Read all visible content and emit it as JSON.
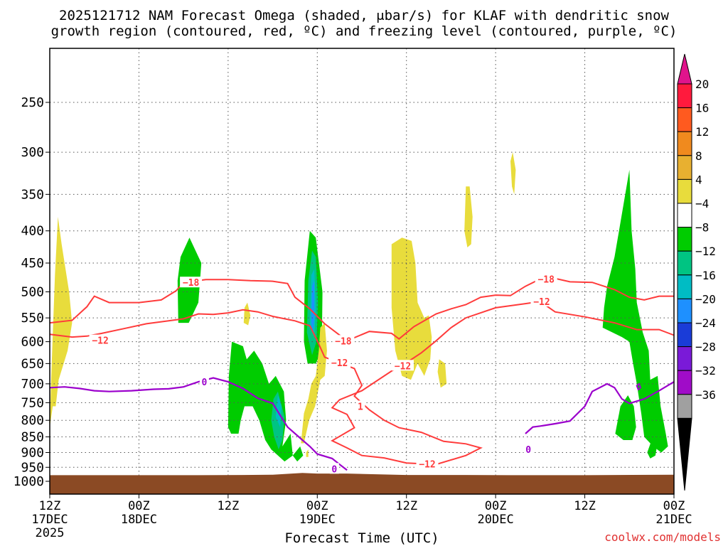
{
  "chart_data": {
    "type": "heatmap",
    "title_line1": "2025121712 NAM Forecast Omega (shaded, μbar/s) for KLAF with dendritic snow",
    "title_line2": "growth region (contoured, red, ºC) and freezing level (contoured, purple, ºC)",
    "xlabel": "Forecast Time (UTC)",
    "ylabel": "Pressure (mb)",
    "credit": "coolwx.com/models",
    "xlim_hours": [
      0,
      84
    ],
    "ylim_mb": [
      1000,
      200
    ],
    "x_ticks": [
      {
        "h": 0,
        "top": "12Z",
        "bottom": "17DEC",
        "extra": "2025"
      },
      {
        "h": 12,
        "top": "00Z",
        "bottom": "18DEC"
      },
      {
        "h": 24,
        "top": "12Z",
        "bottom": ""
      },
      {
        "h": 36,
        "top": "00Z",
        "bottom": "19DEC"
      },
      {
        "h": 48,
        "top": "12Z",
        "bottom": ""
      },
      {
        "h": 60,
        "top": "00Z",
        "bottom": "20DEC"
      },
      {
        "h": 72,
        "top": "12Z",
        "bottom": ""
      },
      {
        "h": 84,
        "top": "00Z",
        "bottom": "21DEC"
      }
    ],
    "y_ticks": [
      250,
      300,
      350,
      400,
      450,
      500,
      550,
      600,
      650,
      700,
      750,
      800,
      850,
      900,
      950,
      1000
    ],
    "colorbar": {
      "labels": [
        "20",
        "16",
        "12",
        "8",
        "4",
        "−4",
        "−8",
        "−12",
        "−16",
        "−20",
        "−24",
        "−28",
        "−32",
        "−36"
      ],
      "colors": [
        "#ff1a3d",
        "#ff5a1f",
        "#f08a1e",
        "#e8b030",
        "#e8dc3c",
        "#ffffff",
        "#00cc00",
        "#00c482",
        "#00bcc4",
        "#1e90ff",
        "#1a3cd8",
        "#7a1ad8",
        "#a00cc8",
        "#a0a0a0"
      ],
      "top_arrow_color": "#e0148c",
      "bottom_arrow_color": "#000000"
    },
    "omega_fill_colors": {
      "pos4_8": "#e8dc3c",
      "neg4_8": "#00cc00",
      "neg8_12": "#00c482",
      "neg12_16": "#00bcc4",
      "neg16_20": "#1e90ff",
      "neg20_24": "#1a3cd8"
    },
    "contour_colors": {
      "dgz": "#ff3b3b",
      "freezing": "#9b00cc",
      "terrain": "#8b4a24"
    },
    "contour_labels": {
      "minus18": "−18",
      "minus12": "−12",
      "zero": "0"
    },
    "dgz_minus18": [
      [
        0,
        560
      ],
      [
        3,
        555
      ],
      [
        5,
        528
      ],
      [
        6,
        508
      ],
      [
        8,
        520
      ],
      [
        12,
        520
      ],
      [
        15,
        515
      ],
      [
        17,
        498
      ],
      [
        18,
        483
      ],
      [
        21,
        478
      ],
      [
        24,
        478
      ],
      [
        27,
        480
      ],
      [
        30,
        481
      ],
      [
        32,
        485
      ],
      [
        33,
        510
      ],
      [
        35,
        532
      ],
      [
        37,
        562
      ],
      [
        40,
        598
      ],
      [
        43,
        578
      ],
      [
        46,
        582
      ],
      [
        47,
        594
      ],
      [
        49,
        568
      ],
      [
        52,
        542
      ],
      [
        54,
        532
      ],
      [
        56,
        524
      ],
      [
        58,
        510
      ],
      [
        60,
        506
      ],
      [
        62,
        507
      ],
      [
        64,
        490
      ],
      [
        66,
        477
      ],
      [
        68,
        476
      ],
      [
        70,
        482
      ],
      [
        73,
        483
      ],
      [
        76,
        496
      ],
      [
        78,
        510
      ],
      [
        80,
        515
      ],
      [
        82,
        508
      ],
      [
        84,
        508
      ]
    ],
    "dgz_minus12": [
      [
        0,
        584
      ],
      [
        3,
        590
      ],
      [
        5,
        588
      ],
      [
        7,
        582
      ],
      [
        10,
        572
      ],
      [
        13,
        562
      ],
      [
        16,
        556
      ],
      [
        18,
        552
      ],
      [
        20,
        542
      ],
      [
        22,
        543
      ],
      [
        24,
        540
      ],
      [
        26,
        534
      ],
      [
        28,
        538
      ],
      [
        30,
        547
      ],
      [
        33,
        556
      ],
      [
        35,
        566
      ],
      [
        36,
        598
      ],
      [
        37,
        635
      ],
      [
        39,
        648
      ],
      [
        41,
        662
      ],
      [
        42,
        704
      ],
      [
        41,
        732
      ],
      [
        43,
        770
      ],
      [
        45,
        800
      ],
      [
        47,
        822
      ],
      [
        50,
        836
      ],
      [
        53,
        864
      ],
      [
        56,
        872
      ],
      [
        58,
        885
      ],
      [
        56,
        910
      ],
      [
        52,
        940
      ],
      [
        48,
        935
      ],
      [
        45,
        918
      ],
      [
        42,
        910
      ],
      [
        40,
        885
      ],
      [
        38,
        862
      ],
      [
        41,
        822
      ],
      [
        40,
        783
      ],
      [
        38,
        764
      ],
      [
        39,
        742
      ],
      [
        42,
        718
      ],
      [
        46,
        668
      ],
      [
        48,
        648
      ],
      [
        50,
        625
      ],
      [
        52,
        598
      ],
      [
        54,
        570
      ],
      [
        56,
        550
      ],
      [
        60,
        530
      ],
      [
        64,
        522
      ],
      [
        66,
        518
      ],
      [
        68,
        538
      ],
      [
        72,
        548
      ],
      [
        76,
        560
      ],
      [
        79,
        574
      ],
      [
        82,
        574
      ],
      [
        84,
        586
      ]
    ],
    "freezing_zero_left": [
      [
        0,
        710
      ],
      [
        2,
        708
      ],
      [
        4,
        712
      ],
      [
        6,
        718
      ],
      [
        8,
        720
      ],
      [
        11,
        718
      ],
      [
        14,
        714
      ],
      [
        16,
        713
      ],
      [
        18,
        708
      ],
      [
        20,
        695
      ],
      [
        22,
        685
      ],
      [
        24,
        695
      ],
      [
        26,
        712
      ],
      [
        28,
        738
      ],
      [
        30,
        752
      ],
      [
        32,
        820
      ],
      [
        34,
        860
      ],
      [
        35,
        880
      ],
      [
        36,
        905
      ],
      [
        38,
        920
      ],
      [
        39,
        940
      ],
      [
        40,
        960
      ]
    ],
    "freezing_zero_right": [
      [
        64,
        840
      ],
      [
        65,
        820
      ],
      [
        66,
        817
      ],
      [
        68,
        810
      ],
      [
        70,
        802
      ],
      [
        72,
        760
      ],
      [
        73,
        720
      ],
      [
        75,
        700
      ],
      [
        76,
        710
      ],
      [
        77,
        740
      ],
      [
        78,
        752
      ],
      [
        80,
        740
      ],
      [
        82,
        718
      ],
      [
        84,
        695
      ]
    ],
    "terrain_top_mb": [
      [
        0,
        978
      ],
      [
        8,
        978
      ],
      [
        16,
        978
      ],
      [
        20,
        978
      ],
      [
        26,
        977
      ],
      [
        30,
        976
      ],
      [
        32,
        973
      ],
      [
        34,
        970
      ],
      [
        36,
        972
      ],
      [
        40,
        972
      ],
      [
        48,
        977
      ],
      [
        56,
        977
      ],
      [
        62,
        978
      ],
      [
        72,
        978
      ],
      [
        84,
        976
      ]
    ]
  }
}
